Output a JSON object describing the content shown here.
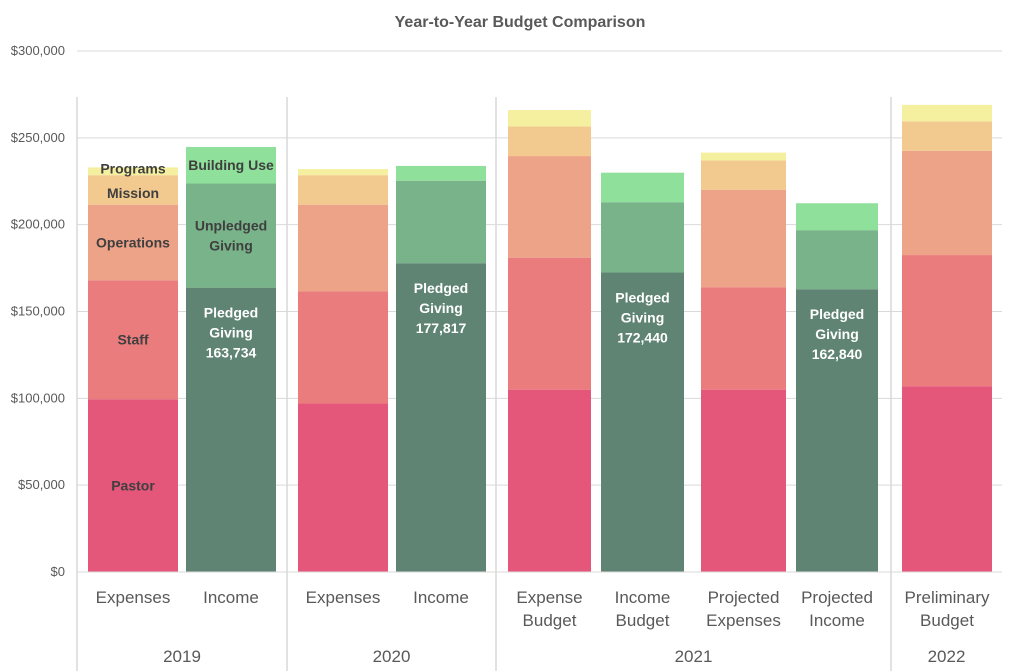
{
  "chart_data": {
    "type": "bar",
    "stacked": true,
    "title": "Year-to-Year Budget Comparison",
    "ylim": [
      0,
      300000
    ],
    "yticks": [
      0,
      50000,
      100000,
      150000,
      200000,
      250000,
      300000
    ],
    "ytick_labels": [
      "$0",
      "$50,000",
      "$100,000",
      "$150,000",
      "$200,000",
      "$250,000",
      "$300,000"
    ],
    "grid": true,
    "legend": "none",
    "colors": {
      "Pastor": "#e4567a",
      "Staff": "#ea7c7e",
      "Operations": "#eda387",
      "Mission": "#f2c98f",
      "Programs": "#f5f0a0",
      "Pledged Giving": "#5f8473",
      "Unpledged Giving": "#79b38a",
      "Building Use": "#8fe09a"
    },
    "groups": [
      {
        "year": "2019",
        "bars": [
          {
            "category": "Expenses",
            "segments": [
              {
                "name": "Pastor",
                "value": 99500,
                "label": "Pastor"
              },
              {
                "name": "Staff",
                "value": 68500,
                "label": "Staff"
              },
              {
                "name": "Operations",
                "value": 43500,
                "label": "Operations"
              },
              {
                "name": "Mission",
                "value": 17000,
                "label": "Mission"
              },
              {
                "name": "Programs",
                "value": 4500,
                "label": "Programs"
              }
            ]
          },
          {
            "category": "Income",
            "segments": [
              {
                "name": "Pledged Giving",
                "value": 163734,
                "label": "Pledged Giving 163,734"
              },
              {
                "name": "Unpledged Giving",
                "value": 60000,
                "label": "Unpledged Giving"
              },
              {
                "name": "Building Use",
                "value": 21000,
                "label": "Building Use"
              }
            ]
          }
        ]
      },
      {
        "year": "2020",
        "bars": [
          {
            "category": "Expenses",
            "segments": [
              {
                "name": "Pastor",
                "value": 97000,
                "label": ""
              },
              {
                "name": "Staff",
                "value": 64500,
                "label": ""
              },
              {
                "name": "Operations",
                "value": 50000,
                "label": ""
              },
              {
                "name": "Mission",
                "value": 17000,
                "label": ""
              },
              {
                "name": "Programs",
                "value": 3500,
                "label": ""
              }
            ]
          },
          {
            "category": "Income",
            "segments": [
              {
                "name": "Pledged Giving",
                "value": 177817,
                "label": "Pledged Giving 177,817"
              },
              {
                "name": "Unpledged Giving",
                "value": 47500,
                "label": ""
              },
              {
                "name": "Building Use",
                "value": 8500,
                "label": ""
              }
            ]
          }
        ]
      },
      {
        "year": "2021",
        "bars": [
          {
            "category": "Expense Budget",
            "segments": [
              {
                "name": "Pastor",
                "value": 105000,
                "label": ""
              },
              {
                "name": "Staff",
                "value": 76000,
                "label": ""
              },
              {
                "name": "Operations",
                "value": 58500,
                "label": ""
              },
              {
                "name": "Mission",
                "value": 17000,
                "label": ""
              },
              {
                "name": "Programs",
                "value": 9500,
                "label": ""
              }
            ]
          },
          {
            "category": "Income Budget",
            "segments": [
              {
                "name": "Pledged Giving",
                "value": 172440,
                "label": "Pledged Giving 172,440"
              },
              {
                "name": "Unpledged Giving",
                "value": 40500,
                "label": ""
              },
              {
                "name": "Building Use",
                "value": 17000,
                "label": ""
              }
            ]
          },
          {
            "category": "Projected Expenses",
            "segments": [
              {
                "name": "Pastor",
                "value": 105000,
                "label": ""
              },
              {
                "name": "Staff",
                "value": 59000,
                "label": ""
              },
              {
                "name": "Operations",
                "value": 56000,
                "label": ""
              },
              {
                "name": "Mission",
                "value": 17000,
                "label": ""
              },
              {
                "name": "Programs",
                "value": 4500,
                "label": ""
              }
            ]
          },
          {
            "category": "Projected Income",
            "segments": [
              {
                "name": "Pledged Giving",
                "value": 162840,
                "label": "Pledged Giving 162,840"
              },
              {
                "name": "Unpledged Giving",
                "value": 34000,
                "label": ""
              },
              {
                "name": "Building Use",
                "value": 15500,
                "label": ""
              }
            ]
          }
        ]
      },
      {
        "year": "2022",
        "bars": [
          {
            "category": "Preliminary Budget",
            "segments": [
              {
                "name": "Pastor",
                "value": 107000,
                "label": ""
              },
              {
                "name": "Staff",
                "value": 75500,
                "label": ""
              },
              {
                "name": "Operations",
                "value": 60000,
                "label": ""
              },
              {
                "name": "Mission",
                "value": 17000,
                "label": ""
              },
              {
                "name": "Programs",
                "value": 9500,
                "label": ""
              }
            ]
          }
        ]
      }
    ]
  }
}
